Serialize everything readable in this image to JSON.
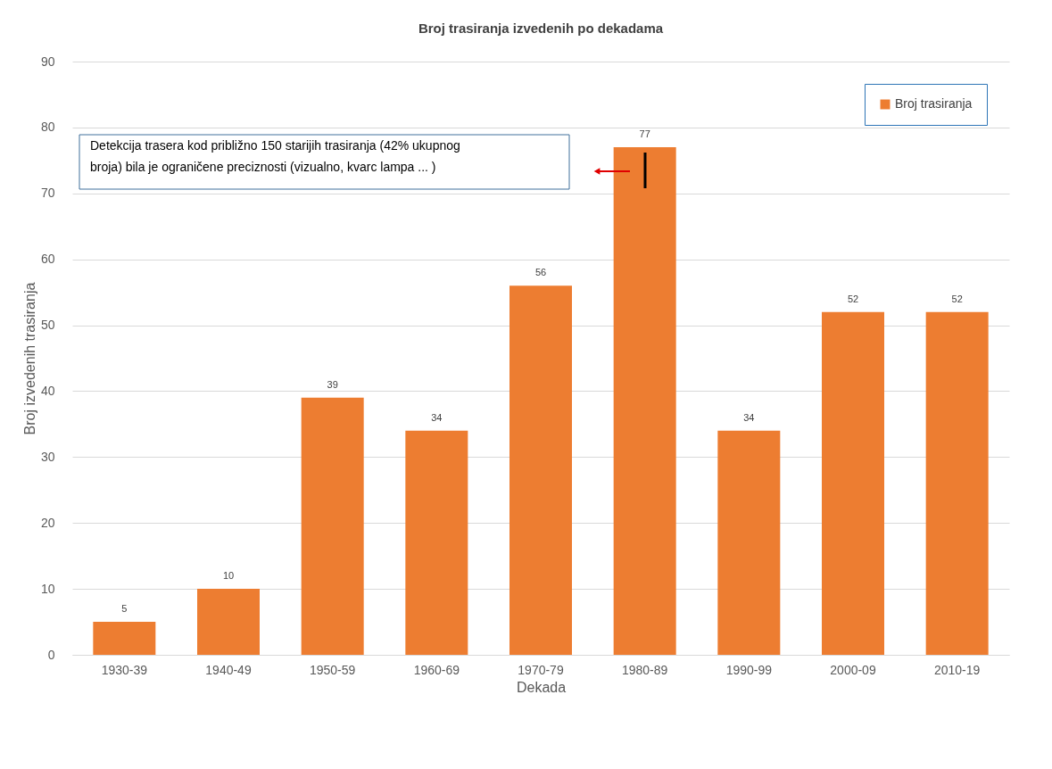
{
  "chart_data": {
    "type": "bar",
    "title": "Broj trasiranja izvedenih po dekadama",
    "xlabel": "Dekada",
    "ylabel": "Broj izvedenih trasiranja",
    "categories": [
      "1930-39",
      "1940-49",
      "1950-59",
      "1960-69",
      "1970-79",
      "1980-89",
      "1990-99",
      "2000-09",
      "2010-19"
    ],
    "series": [
      {
        "name": "Broj trasiranja",
        "color": "#ed7d31",
        "values": [
          5,
          10,
          39,
          34,
          56,
          77,
          34,
          52,
          52
        ]
      }
    ],
    "ylim": [
      0,
      90
    ],
    "yticks": [
      0,
      10,
      20,
      30,
      40,
      50,
      60,
      70,
      80,
      90
    ],
    "grid": "y",
    "legend": "top right",
    "data_labels": true,
    "annotations": [
      "Detekcija trasera kod približno 150 starijih trasiranja (42% ukupnog broja) bila je ograničene preciznosti (vizualno, kvarc lampa ... )"
    ]
  }
}
